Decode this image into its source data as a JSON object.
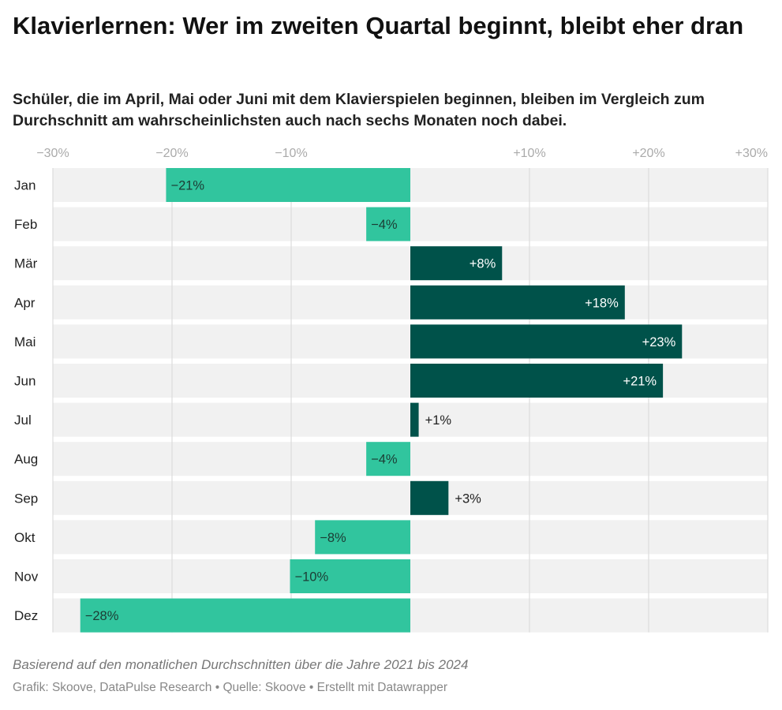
{
  "header": {
    "title": "Klavierlernen: Wer im zweiten Quartal beginnt, bleibt eher dran",
    "subtitle": "Schüler, die im April, Mai oder Juni mit dem Klavierspielen beginnen, bleiben im Vergleich zum Durchschnitt am wahrscheinlichsten auch nach sechs Monaten noch dabei."
  },
  "chart_data": {
    "type": "bar",
    "orientation": "horizontal",
    "categories": [
      "Jan",
      "Feb",
      "Mär",
      "Apr",
      "Mai",
      "Jun",
      "Jul",
      "Aug",
      "Sep",
      "Okt",
      "Nov",
      "Dez"
    ],
    "values": [
      -20.5,
      -3.7,
      7.7,
      18.0,
      22.8,
      21.2,
      0.7,
      -3.7,
      3.2,
      -8.0,
      -10.1,
      -27.7
    ],
    "data_labels": [
      "−21%",
      "−4%",
      "+8%",
      "+18%",
      "+23%",
      "+21%",
      "+1%",
      "−4%",
      "+3%",
      "−8%",
      "−10%",
      "−28%"
    ],
    "xlim": [
      -30,
      30
    ],
    "x_ticks": [
      -30,
      -20,
      -10,
      10,
      20,
      30
    ],
    "x_tick_labels": [
      "−30%",
      "−20%",
      "−10%",
      "+10%",
      "+20%",
      "+30%"
    ],
    "grid": true,
    "colors": {
      "negative": "#31c59e",
      "positive": "#00524a",
      "row_background": "#f1f1f1",
      "gridline": "#d6d6d6"
    }
  },
  "notes": "Basierend auf den monatlichen Durchschnitten über die Jahre 2021 bis 2024",
  "footer": "Grafik: Skoove, DataPulse Research • Quelle: Skoove • Erstellt mit Datawrapper"
}
